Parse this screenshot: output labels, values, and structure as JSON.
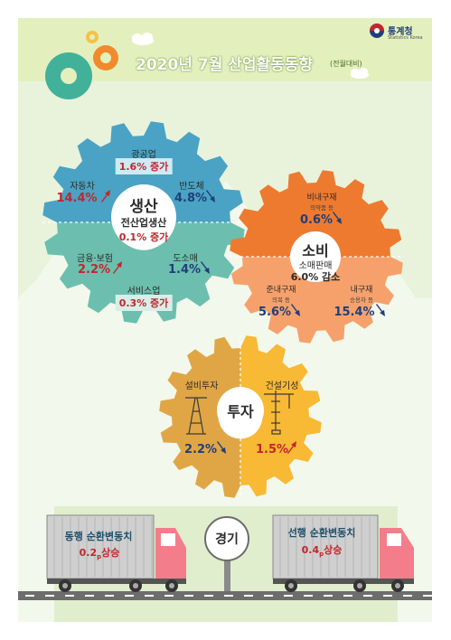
{
  "header": {
    "title": "2020년 7월 산업활동동향",
    "subtitle": "(전월대비)",
    "logo_name": "통계청",
    "logo_sub": "Statistics Korea"
  },
  "production": {
    "title": "생산",
    "total_label": "전산업생산",
    "total_value": "0.1% 증가",
    "mining": {
      "label": "광공업",
      "value": "1.6% 증가"
    },
    "auto": {
      "label": "자동차",
      "value": "14.4%",
      "direction": "up"
    },
    "semi": {
      "label": "반도체",
      "value": "4.8%",
      "direction": "down"
    },
    "finance": {
      "label": "금융·보험",
      "value": "2.2%",
      "direction": "up"
    },
    "retail": {
      "label": "도소매",
      "value": "1.4%",
      "direction": "down"
    },
    "services": {
      "label": "서비스업",
      "value": "0.3% 증가"
    }
  },
  "consumption": {
    "title": "소비",
    "total_label": "소매판매",
    "total_value": "6.0% 감소",
    "nondurable": {
      "label": "비내구재",
      "sub": "의약품 등",
      "value": "0.6%",
      "direction": "down"
    },
    "semidurable": {
      "label": "준내구재",
      "sub": "의복 등",
      "value": "5.6%",
      "direction": "down"
    },
    "durable": {
      "label": "내구재",
      "sub": "승용차 등",
      "value": "15.4%",
      "direction": "down"
    }
  },
  "investment": {
    "title": "투자",
    "facility": {
      "label": "설비투자",
      "value": "2.2%",
      "direction": "down"
    },
    "construction": {
      "label": "건설기성",
      "value": "1.5%",
      "direction": "up"
    }
  },
  "economy": {
    "title": "경기",
    "coincident": {
      "label": "동행 순환변동치",
      "value": "0.2",
      "unit": "p",
      "change": "상승"
    },
    "leading": {
      "label": "선행 순환변동치",
      "value": "0.4",
      "unit": "p",
      "change": "상승"
    }
  },
  "colors": {
    "header_bg": "#e3f0bd",
    "background_green": "#e9f3dc",
    "production_top": "#4aa3c4",
    "production_bottom": "#6cbfae",
    "consumption_top": "#ee7a2f",
    "consumption_bottom": "#f6a16b",
    "investment_left": "#e0a646",
    "investment_right": "#f8b934",
    "up_arrow": "#c0272d",
    "down_arrow": "#1f3f7a"
  }
}
